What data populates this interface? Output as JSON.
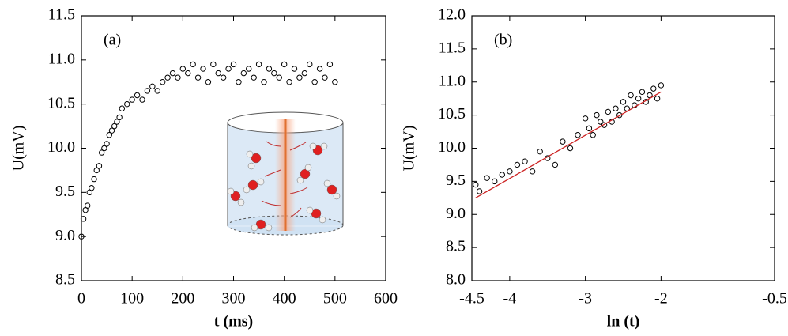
{
  "chart_data": [
    {
      "type": "scatter",
      "panel_label": "(a)",
      "x_label": "t (ms)",
      "y_label": "U(mV)",
      "xlim": [
        0,
        600
      ],
      "xticks": [
        0,
        100,
        200,
        300,
        400,
        500,
        600
      ],
      "ylim": [
        8.5,
        11.5
      ],
      "yticks": [
        8.5,
        {
          "value": 9,
          "label": "9.0"
        },
        9.5,
        {
          "value": 10,
          "label": "10.0"
        },
        10.5,
        {
          "value": 11,
          "label": "11.0"
        },
        11.5
      ],
      "series": [
        {
          "color": "#000000",
          "x": [
            0,
            4,
            8,
            12,
            16,
            20,
            25,
            30,
            35,
            40,
            45,
            50,
            55,
            60,
            65,
            70,
            75,
            80,
            90,
            100,
            110,
            120,
            130,
            140,
            150,
            160,
            170,
            180,
            190,
            200,
            210,
            220,
            230,
            240,
            250,
            260,
            270,
            280,
            290,
            300,
            310,
            320,
            330,
            340,
            350,
            360,
            370,
            380,
            390,
            400,
            410,
            420,
            430,
            440,
            450,
            460,
            470,
            480,
            490,
            500
          ],
          "values": [
            9.0,
            9.2,
            9.3,
            9.35,
            9.5,
            9.55,
            9.65,
            9.75,
            9.8,
            9.95,
            10.0,
            10.05,
            10.15,
            10.2,
            10.25,
            10.3,
            10.35,
            10.45,
            10.5,
            10.55,
            10.6,
            10.55,
            10.65,
            10.7,
            10.65,
            10.75,
            10.8,
            10.85,
            10.8,
            10.9,
            10.85,
            10.95,
            10.8,
            10.9,
            10.75,
            10.95,
            10.85,
            10.8,
            10.9,
            10.95,
            10.75,
            10.85,
            10.9,
            10.8,
            10.95,
            10.75,
            10.9,
            10.85,
            10.8,
            10.95,
            10.75,
            10.9,
            10.8,
            10.85,
            10.95,
            10.75,
            10.9,
            10.8,
            10.95,
            10.75
          ]
        }
      ]
    },
    {
      "type": "scatter",
      "panel_label": "(b)",
      "x_label": "ln (t)",
      "y_label": "U(mV)",
      "xlim": [
        -4.5,
        -0.5
      ],
      "xticks": [
        -4.5,
        -4,
        -3,
        -2,
        -0.5
      ],
      "ylim": [
        8,
        12
      ],
      "yticks": [
        {
          "value": 8,
          "label": "8.0"
        },
        8.5,
        {
          "value": 9,
          "label": "9.0"
        },
        9.5,
        {
          "value": 10,
          "label": "10.0"
        },
        10.5,
        {
          "value": 11,
          "label": "11.0"
        },
        11.5,
        {
          "value": 12,
          "label": "12.0"
        }
      ],
      "series": [
        {
          "color": "#000000",
          "x": [
            -4.45,
            -4.4,
            -4.3,
            -4.2,
            -4.1,
            -4.0,
            -3.9,
            -3.8,
            -3.7,
            -3.6,
            -3.5,
            -3.4,
            -3.3,
            -3.2,
            -3.1,
            -3.0,
            -2.95,
            -2.9,
            -2.85,
            -2.8,
            -2.75,
            -2.7,
            -2.65,
            -2.6,
            -2.55,
            -2.5,
            -2.45,
            -2.4,
            -2.35,
            -2.3,
            -2.25,
            -2.2,
            -2.15,
            -2.1,
            -2.05,
            -2.0
          ],
          "values": [
            9.45,
            9.35,
            9.55,
            9.5,
            9.6,
            9.65,
            9.75,
            9.8,
            9.65,
            9.95,
            9.85,
            9.75,
            10.1,
            10.0,
            10.2,
            10.45,
            10.3,
            10.2,
            10.5,
            10.4,
            10.35,
            10.55,
            10.4,
            10.6,
            10.5,
            10.7,
            10.6,
            10.8,
            10.65,
            10.75,
            10.85,
            10.7,
            10.8,
            10.9,
            10.75,
            10.95
          ]
        }
      ],
      "fit": {
        "color": "#cc2222",
        "x": [
          -4.45,
          -2.0
        ],
        "values": [
          9.25,
          10.85
        ]
      }
    }
  ]
}
